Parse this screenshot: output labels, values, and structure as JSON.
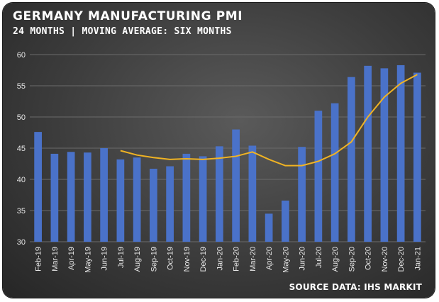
{
  "header": {
    "title": "GERMANY MANUFACTURING PMI",
    "subtitle": "24 MONTHS | MOVING AVERAGE: SIX MONTHS"
  },
  "footer": {
    "source": "SOURCE DATA: IHS MARKIT"
  },
  "colors": {
    "bar": "#4a72c9",
    "line": "#f0b323",
    "grid": "#6b6b6b",
    "text": "#ffffff"
  },
  "chart_data": {
    "type": "bar",
    "title": "GERMANY MANUFACTURING PMI",
    "subtitle": "24 MONTHS | MOVING AVERAGE: SIX MONTHS",
    "xlabel": "",
    "ylabel": "",
    "ylim": [
      30,
      60
    ],
    "yticks": [
      30,
      35,
      40,
      45,
      50,
      55,
      60
    ],
    "grid": true,
    "categories": [
      "Feb-19",
      "Mar-19",
      "Apr-19",
      "May-19",
      "Jun-19",
      "Jul-19",
      "Aug-19",
      "Sep-19",
      "Oct-19",
      "Nov-19",
      "Dec-19",
      "Jan-20",
      "Feb-20",
      "Mar-20",
      "Apr-20",
      "May-20",
      "Jun-20",
      "Jul-20",
      "Aug-20",
      "Sep-20",
      "Oct-20",
      "Nov-20",
      "Dec-20",
      "Jan-21"
    ],
    "series": [
      {
        "type": "bar",
        "values": [
          47.6,
          44.1,
          44.4,
          44.3,
          45.0,
          43.2,
          43.5,
          41.7,
          42.1,
          44.1,
          43.7,
          45.3,
          48.0,
          45.4,
          34.5,
          36.6,
          45.2,
          51.0,
          52.2,
          56.4,
          58.2,
          57.8,
          58.3,
          57.1
        ]
      },
      {
        "type": "line",
        "values": [
          null,
          null,
          null,
          null,
          null,
          44.6,
          43.9,
          43.5,
          43.2,
          43.3,
          43.2,
          43.4,
          43.7,
          44.4,
          43.2,
          42.2,
          42.2,
          42.9,
          44.1,
          46.0,
          50.0,
          53.2,
          55.4,
          56.8
        ]
      }
    ]
  }
}
